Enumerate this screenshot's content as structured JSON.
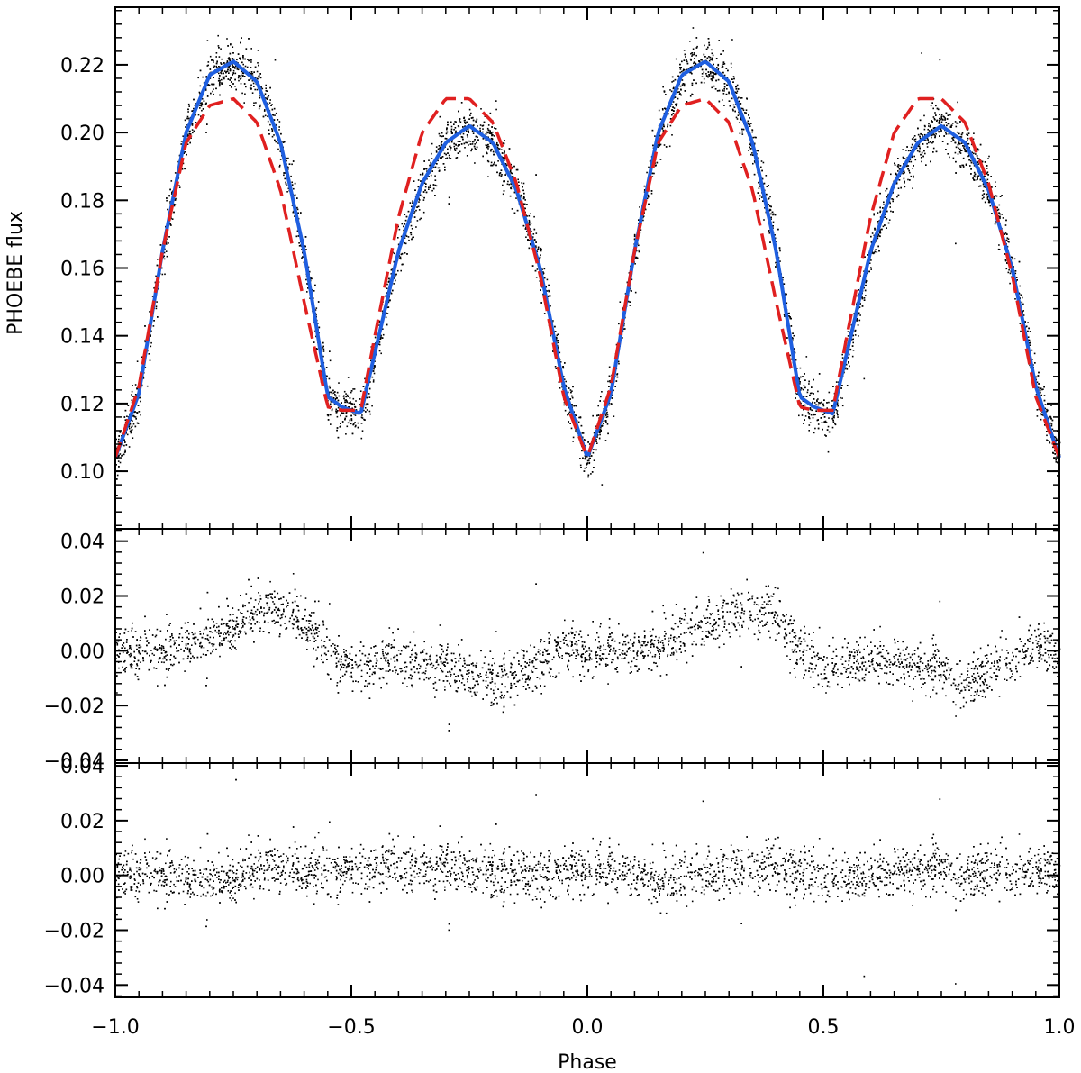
{
  "chart_data": [
    {
      "panel": "top",
      "type": "scatter",
      "ylabel": "PHOEBE flux",
      "xlim": [
        -1.0,
        1.0
      ],
      "ylim": [
        0.083,
        0.237
      ],
      "yticks": [
        {
          "value": 0.1,
          "label": "0.10"
        },
        {
          "value": 0.12,
          "label": "0.12"
        },
        {
          "value": 0.14,
          "label": "0.14"
        },
        {
          "value": 0.16,
          "label": "0.16"
        },
        {
          "value": 0.18,
          "label": "0.18"
        },
        {
          "value": 0.2,
          "label": "0.20"
        },
        {
          "value": 0.22,
          "label": "0.22"
        }
      ],
      "series": [
        {
          "kind": "points",
          "color": "#000000",
          "note_points": "dense noisy observations scattering about the blue model curve",
          "scatter_sd": 0.0035
        },
        {
          "kind": "line",
          "style": "solid",
          "color": "#1f5fe0",
          "x": [
            -1.0,
            -0.95,
            -0.9,
            -0.85,
            -0.8,
            -0.75,
            -0.7,
            -0.65,
            -0.6,
            -0.55,
            -0.52,
            -0.5,
            -0.48,
            -0.45,
            -0.4,
            -0.35,
            -0.3,
            -0.25,
            -0.2,
            -0.15,
            -0.1,
            -0.05,
            0.0,
            0.05,
            0.1,
            0.15,
            0.2,
            0.25,
            0.3,
            0.35,
            0.4,
            0.45,
            0.48,
            0.5,
            0.52,
            0.55,
            0.6,
            0.65,
            0.7,
            0.75,
            0.8,
            0.85,
            0.9,
            0.95,
            1.0
          ],
          "y": [
            0.104,
            0.123,
            0.165,
            0.2,
            0.217,
            0.221,
            0.215,
            0.197,
            0.165,
            0.122,
            0.119,
            0.118,
            0.117,
            0.135,
            0.165,
            0.185,
            0.197,
            0.202,
            0.197,
            0.183,
            0.16,
            0.125,
            0.104,
            0.123,
            0.165,
            0.2,
            0.217,
            0.221,
            0.215,
            0.197,
            0.165,
            0.122,
            0.119,
            0.118,
            0.117,
            0.135,
            0.165,
            0.185,
            0.197,
            0.202,
            0.197,
            0.183,
            0.16,
            0.125,
            0.104
          ]
        },
        {
          "kind": "line",
          "style": "dashed",
          "color": "#e02020",
          "x": [
            -1.0,
            -0.95,
            -0.9,
            -0.85,
            -0.8,
            -0.75,
            -0.7,
            -0.65,
            -0.6,
            -0.55,
            -0.52,
            -0.5,
            -0.48,
            -0.45,
            -0.4,
            -0.35,
            -0.3,
            -0.25,
            -0.2,
            -0.15,
            -0.1,
            -0.05,
            0.0,
            0.05,
            0.1,
            0.15,
            0.2,
            0.25,
            0.3,
            0.35,
            0.4,
            0.45,
            0.48,
            0.5,
            0.52,
            0.55,
            0.6,
            0.65,
            0.7,
            0.75,
            0.8,
            0.85,
            0.9,
            0.95,
            1.0
          ],
          "y": [
            0.104,
            0.125,
            0.165,
            0.197,
            0.208,
            0.21,
            0.203,
            0.183,
            0.15,
            0.119,
            0.118,
            0.118,
            0.118,
            0.14,
            0.175,
            0.2,
            0.21,
            0.21,
            0.203,
            0.185,
            0.158,
            0.122,
            0.104,
            0.125,
            0.165,
            0.197,
            0.208,
            0.21,
            0.203,
            0.183,
            0.15,
            0.119,
            0.118,
            0.118,
            0.118,
            0.14,
            0.175,
            0.2,
            0.21,
            0.21,
            0.203,
            0.185,
            0.158,
            0.122,
            0.104
          ]
        }
      ]
    },
    {
      "panel": "middle",
      "type": "scatter",
      "xlim": [
        -1.0,
        1.0
      ],
      "ylim": [
        -0.041,
        0.0445
      ],
      "yticks": [
        {
          "value": -0.04,
          "label": "−0.04"
        },
        {
          "value": -0.02,
          "label": "−0.02"
        },
        {
          "value": 0.0,
          "label": "0.00"
        },
        {
          "value": 0.02,
          "label": "0.02"
        },
        {
          "value": 0.04,
          "label": "0.04"
        }
      ],
      "series": [
        {
          "kind": "points",
          "color": "#000000",
          "note_points": "residuals of the dashed model; scatter about a trend",
          "trend_x": [
            -1.0,
            -0.9,
            -0.8,
            -0.7,
            -0.65,
            -0.6,
            -0.55,
            -0.5,
            -0.4,
            -0.3,
            -0.2,
            -0.15,
            -0.1,
            -0.05,
            0.0,
            0.1,
            0.2,
            0.3,
            0.35,
            0.4,
            0.45,
            0.5,
            0.6,
            0.7,
            0.8,
            0.85,
            0.9,
            0.95,
            1.0
          ],
          "trend_y": [
            0.0,
            -0.001,
            0.006,
            0.014,
            0.016,
            0.012,
            0.0,
            -0.006,
            -0.003,
            -0.005,
            -0.011,
            -0.009,
            -0.004,
            0.002,
            0.0,
            -0.001,
            0.006,
            0.014,
            0.016,
            0.012,
            0.0,
            -0.006,
            -0.003,
            -0.005,
            -0.011,
            -0.009,
            -0.004,
            0.002,
            0.0
          ],
          "scatter_sd": 0.0045
        }
      ]
    },
    {
      "panel": "bottom",
      "type": "scatter",
      "xlabel": "Phase",
      "xlim": [
        -1.0,
        1.0
      ],
      "ylim": [
        -0.0445,
        0.041
      ],
      "xticks": [
        {
          "value": -1.0,
          "label": "−1.0"
        },
        {
          "value": -0.5,
          "label": "−0.5"
        },
        {
          "value": 0.0,
          "label": "0.0"
        },
        {
          "value": 0.5,
          "label": "0.5"
        },
        {
          "value": 1.0,
          "label": "1.0"
        }
      ],
      "yticks": [
        {
          "value": -0.04,
          "label": "−0.04"
        },
        {
          "value": -0.02,
          "label": "−0.02"
        },
        {
          "value": 0.0,
          "label": "0.00"
        },
        {
          "value": 0.02,
          "label": "0.02"
        },
        {
          "value": 0.04,
          "label": "0.04"
        }
      ],
      "series": [
        {
          "kind": "points",
          "color": "#000000",
          "note_points": "residuals of the solid model; scatter about a trend",
          "trend_x": [
            -1.0,
            -0.85,
            -0.75,
            -0.65,
            -0.55,
            -0.45,
            -0.3,
            -0.2,
            -0.1,
            0.0,
            0.15,
            0.25,
            0.35,
            0.45,
            0.55,
            0.7,
            0.8,
            0.9,
            1.0
          ],
          "trend_y": [
            0.001,
            -0.001,
            0.0,
            0.004,
            0.002,
            0.003,
            0.004,
            0.001,
            0.0,
            0.003,
            -0.002,
            0.001,
            0.004,
            0.001,
            -0.001,
            0.003,
            0.001,
            0.0,
            0.003
          ],
          "scatter_sd": 0.0045
        }
      ]
    }
  ]
}
